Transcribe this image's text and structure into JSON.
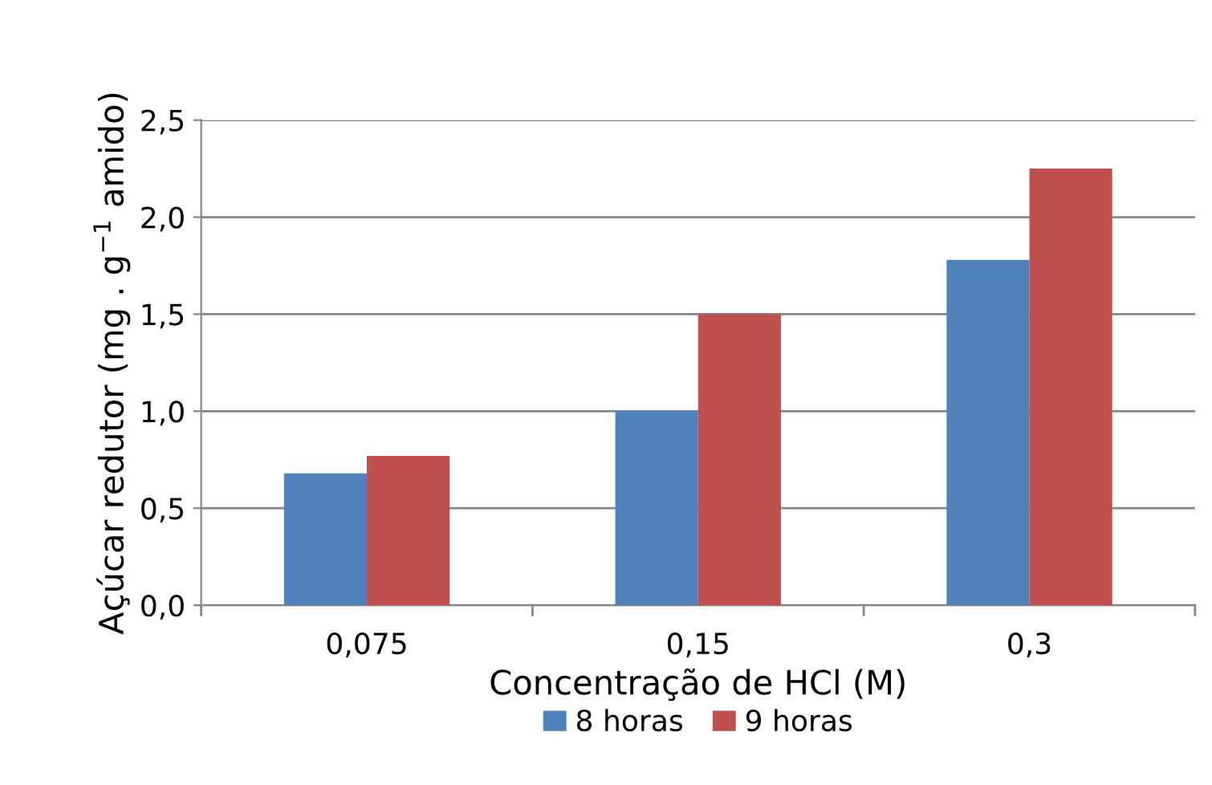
{
  "chart_data": {
    "type": "bar",
    "xlabel": "Concentração de HCl (M)",
    "ylabel": "Açúcar redutor (mg . g$^{−1}$ amido)",
    "categories": [
      "0,075",
      "0,15",
      "0,3"
    ],
    "series": [
      {
        "name": "8 horas",
        "color": "#4f81bd",
        "values": [
          0.68,
          1.0,
          1.78
        ]
      },
      {
        "name": "9 horas",
        "color": "#c0504d",
        "values": [
          0.77,
          1.5,
          2.25
        ]
      }
    ],
    "ylim": [
      0,
      2.5
    ],
    "yticks": [
      {
        "value": 0,
        "label": "0,0"
      },
      {
        "value": 0.5,
        "label": "0,5"
      },
      {
        "value": 1,
        "label": "1,0"
      },
      {
        "value": 1.5,
        "label": "1,5"
      },
      {
        "value": 2,
        "label": "2,0"
      },
      {
        "value": 2.5,
        "label": "2,5"
      }
    ],
    "grid": "y",
    "legend": "bottom"
  }
}
